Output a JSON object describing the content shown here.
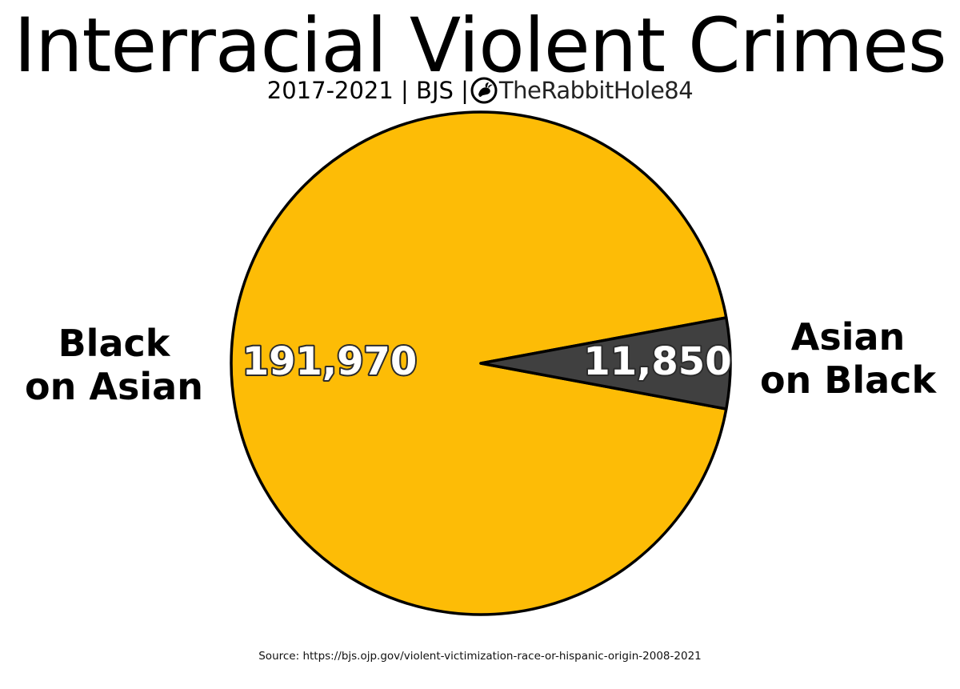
{
  "header": {
    "title": "Interracial Violent Crimes",
    "subtitle_prefix": "2017-2021 | BJS |",
    "handle": "TheRabbitHole84",
    "logo_icon": "rabbit-logo-icon"
  },
  "labels": {
    "left_line1": "Black",
    "left_line2": "on Asian",
    "right_line1": "Asian",
    "right_line2": "on Black"
  },
  "footer": {
    "source": "Source: https://bjs.ojp.gov/violent-victimization-race-or-hispanic-origin-2008-2021"
  },
  "chart_data": {
    "type": "pie",
    "title": "Interracial Violent Crimes",
    "subtitle": "2017-2021 | BJS | TheRabbitHole84",
    "slices": [
      {
        "label": "Black on Asian",
        "value": 191970,
        "value_label": "191,970",
        "color": "#FDBC06"
      },
      {
        "label": "Asian on Black",
        "value": 11850,
        "value_label": "11,850",
        "color": "#404040"
      }
    ],
    "start_direction": "small slice centered on the right (east)",
    "edge_color": "#000000",
    "value_label_style": "white text with dark outline"
  }
}
